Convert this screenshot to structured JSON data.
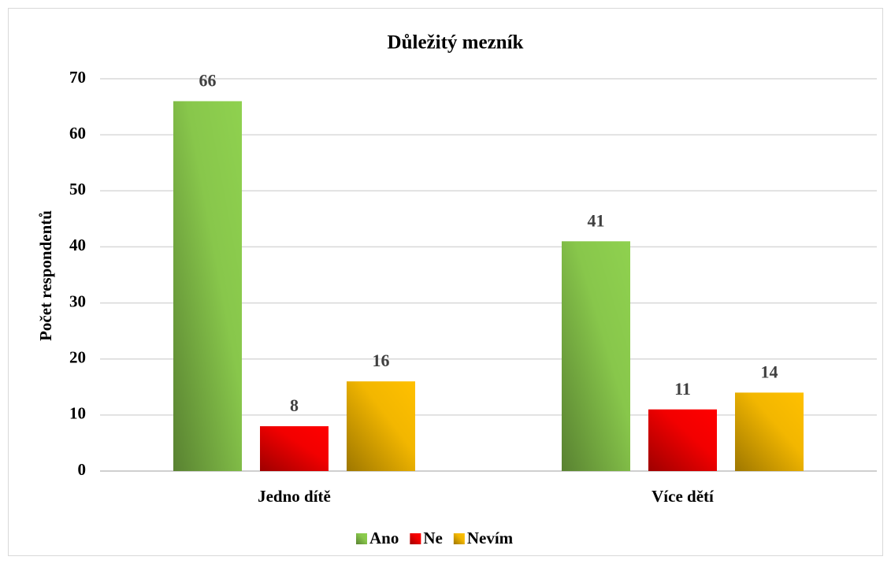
{
  "chart_data": {
    "type": "bar",
    "title": "Důležitý mezník",
    "ylabel": "Počet respondentů",
    "categories": [
      "Jedno dítě",
      "Více dětí"
    ],
    "series": [
      {
        "name": "Ano",
        "color": "#8fd14f",
        "values": [
          66,
          41
        ]
      },
      {
        "name": "Ne",
        "color": "#ff0000",
        "values": [
          8,
          11
        ]
      },
      {
        "name": "Nevím",
        "color": "#ffc000",
        "values": [
          16,
          14
        ]
      }
    ],
    "ylim": [
      0,
      70
    ],
    "yticks": [
      0,
      10,
      20,
      30,
      40,
      50,
      60,
      70
    ],
    "grid": true,
    "legend": "bottom"
  }
}
